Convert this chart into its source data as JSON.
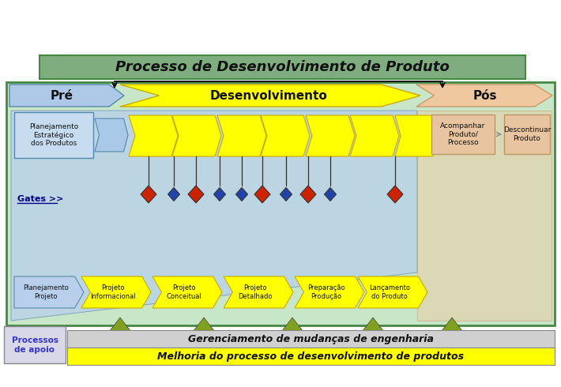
{
  "title": "Processo de Desenvolvimento de Produto",
  "title_bg": "#7fad7f",
  "main_bg": "#c8e6c8",
  "outer_bg": "#ffffff",
  "pre_label": "Pré",
  "pre_bg": "#aec8e8",
  "dev_label": "Desenvolvimento",
  "dev_bg": "#ffff00",
  "pos_label": "Pós",
  "pos_bg": "#f0c8a0",
  "yellow_arrow_bg": "#ffff00",
  "phases_bottom": [
    "Planejamento\nProjeto",
    "Projeto\nInformacional",
    "Projeto\nConceitual",
    "Projeto\nDetalhado",
    "Preparação\nProdução",
    "Lançamento\ndo Produto"
  ],
  "gates_label": "Gates >>",
  "red_gate_indices": [
    0,
    2,
    5,
    7,
    9
  ],
  "blue_gate_indices": [
    1,
    3,
    4,
    6,
    8
  ],
  "support_label": "Processos\nde apoio",
  "bar1_label": "Gerenciamento de mudanças de engenharia",
  "bar1_bg": "#d0d0d0",
  "bar2_label": "Melhoria do processo de desenvolvimento de produtos",
  "bar2_bg": "#ffff00",
  "triangle_color": "#80a020",
  "green_border": "#448844",
  "blue_funnel": "#b8d0ec",
  "peach_funnel": "#f0c8a0",
  "blue_box_color": "#c8dcf0",
  "peach_box_color": "#e8c4a0",
  "red_diamond": "#cc2200",
  "blue_diamond": "#2244aa"
}
